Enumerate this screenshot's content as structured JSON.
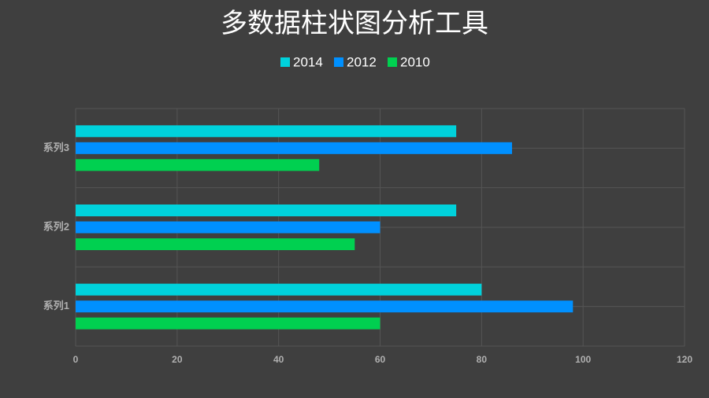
{
  "chart_data": {
    "type": "hbar",
    "title": "多数据柱状图分析工具",
    "categories": [
      "系列1",
      "系列2",
      "系列3"
    ],
    "series": [
      {
        "name": "2014",
        "color": "#00d2dc",
        "values": [
          80,
          75,
          75
        ]
      },
      {
        "name": "2012",
        "color": "#0090ff",
        "values": [
          98,
          60,
          86
        ]
      },
      {
        "name": "2010",
        "color": "#00d050",
        "values": [
          60,
          55,
          48
        ]
      }
    ],
    "xlim": [
      0,
      120
    ],
    "xticks": [
      0,
      20,
      40,
      60,
      80,
      100,
      120
    ],
    "grid": true,
    "legend": "top"
  }
}
